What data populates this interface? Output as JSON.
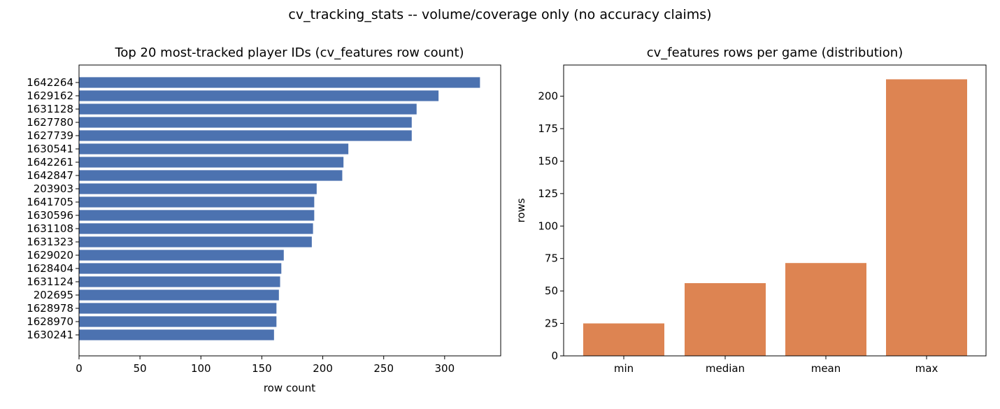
{
  "suptitle": "cv_tracking_stats -- volume/coverage only (no accuracy claims)",
  "chart_data": [
    {
      "type": "bar",
      "orientation": "horizontal",
      "title": "Top 20 most-tracked player IDs (cv_features row count)",
      "xlabel": "row count",
      "ylabel": "",
      "color": "#4c72b0",
      "xlim": [
        0,
        346
      ],
      "xticks": [
        0,
        50,
        100,
        150,
        200,
        250,
        300
      ],
      "categories": [
        "1642264",
        "1629162",
        "1631128",
        "1627780",
        "1627739",
        "1630541",
        "1642261",
        "1642847",
        "203903",
        "1641705",
        "1630596",
        "1631108",
        "1631323",
        "1629020",
        "1628404",
        "1631124",
        "202695",
        "1628978",
        "1628970",
        "1630241"
      ],
      "values": [
        329,
        295,
        277,
        273,
        273,
        221,
        217,
        216,
        195,
        193,
        193,
        192,
        191,
        168,
        166,
        165,
        164,
        162,
        162,
        160
      ]
    },
    {
      "type": "bar",
      "orientation": "vertical",
      "title": "cv_features rows per game (distribution)",
      "xlabel": "",
      "ylabel": "rows",
      "color": "#dd8452",
      "ylim": [
        0,
        224
      ],
      "yticks": [
        0,
        25,
        50,
        75,
        100,
        125,
        150,
        175,
        200
      ],
      "categories": [
        "min",
        "median",
        "mean",
        "max"
      ],
      "values": [
        25,
        56,
        71.5,
        213
      ]
    }
  ]
}
